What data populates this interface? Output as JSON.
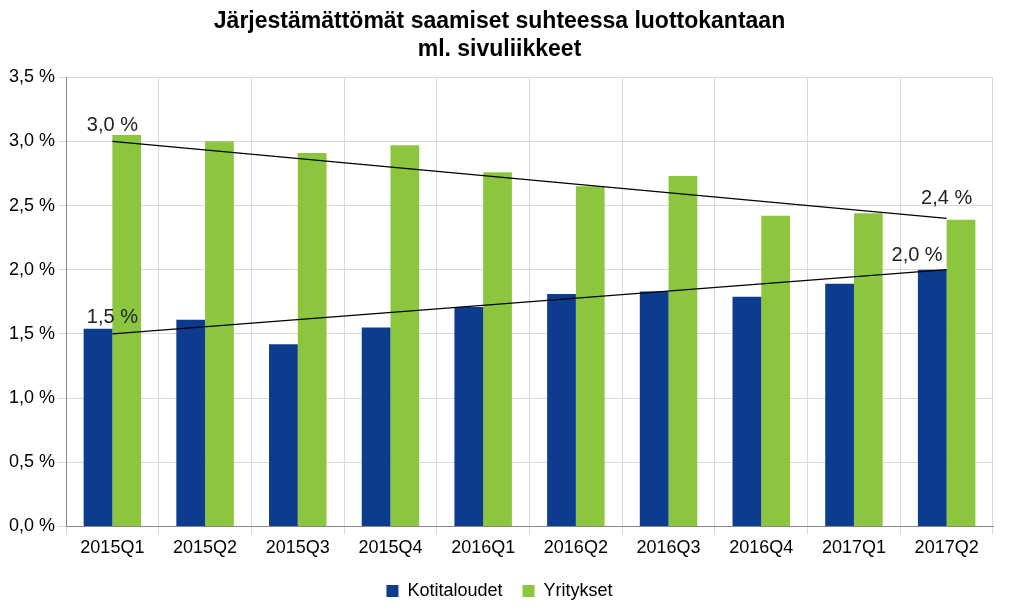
{
  "chart_data": {
    "type": "bar",
    "title": [
      "Järjestämättömät saamiset suhteessa luottokantaan",
      "ml. sivuliikkeet"
    ],
    "categories": [
      "2015Q1",
      "2015Q2",
      "2015Q3",
      "2015Q4",
      "2016Q1",
      "2016Q2",
      "2016Q3",
      "2016Q4",
      "2017Q1",
      "2017Q2"
    ],
    "series": [
      {
        "name": "Kotitaloudet",
        "color": "#0d3b8e",
        "values": [
          1.54,
          1.61,
          1.42,
          1.55,
          1.71,
          1.81,
          1.83,
          1.79,
          1.89,
          2.0
        ]
      },
      {
        "name": "Yritykset",
        "color": "#8cc63f",
        "values": [
          3.05,
          3.0,
          2.91,
          2.97,
          2.76,
          2.65,
          2.73,
          2.42,
          2.44,
          2.39
        ]
      }
    ],
    "trend_lines": [
      {
        "series": "Yritykset",
        "color": "#000000",
        "values": [
          3.0,
          2.4
        ],
        "value_labels": [
          "3,0 %",
          "2,4 %"
        ]
      },
      {
        "series": "Kotitaloudet",
        "color": "#000000",
        "values": [
          1.5,
          2.0
        ],
        "value_labels": [
          "1,5 %",
          "2,0 %"
        ]
      }
    ],
    "ylim": [
      0,
      3.5
    ],
    "yticks": [
      {
        "value": 0,
        "label": "0,0 %"
      },
      {
        "value": 0.5,
        "label": "0,5 %"
      },
      {
        "value": 1,
        "label": "1,0 %"
      },
      {
        "value": 1.5,
        "label": "1,5 %"
      },
      {
        "value": 2,
        "label": "2,0 %"
      },
      {
        "value": 2.5,
        "label": "2,5 %"
      },
      {
        "value": 3,
        "label": "3,0 %"
      },
      {
        "value": 3.5,
        "label": "3,5 %"
      }
    ],
    "grid": true,
    "legend": "bottom"
  }
}
